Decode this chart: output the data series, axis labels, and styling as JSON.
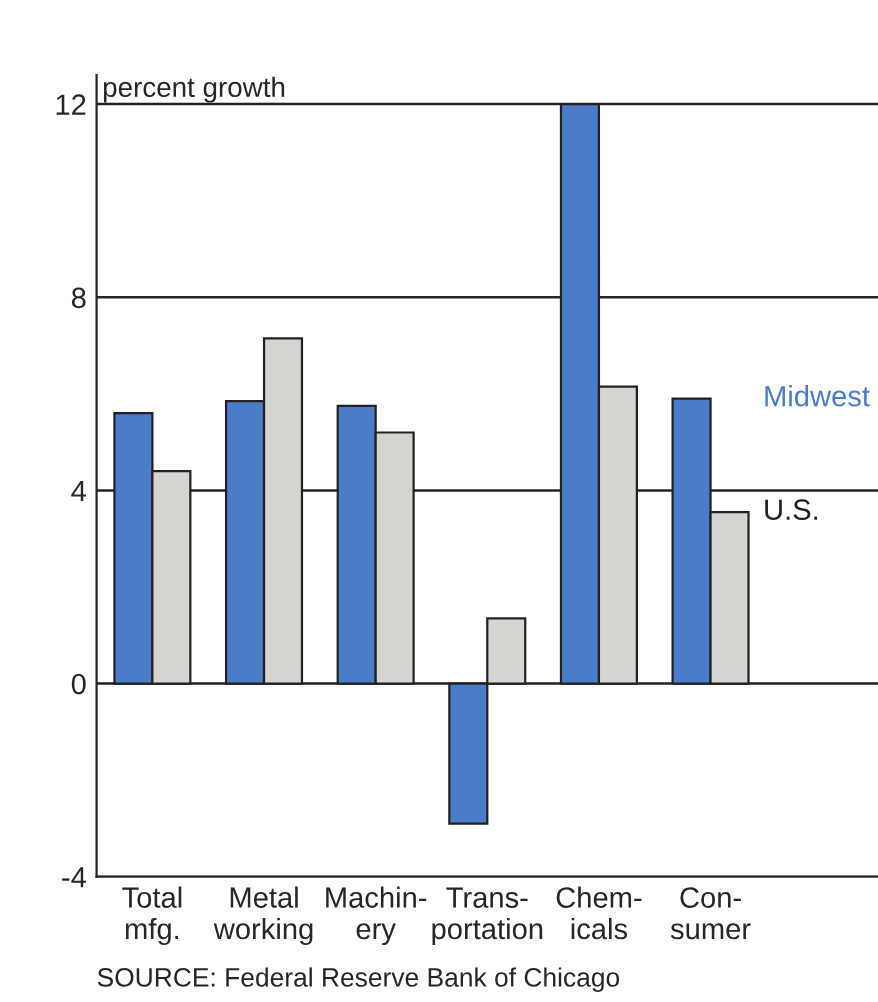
{
  "chart_data": {
    "type": "bar",
    "ylabel": "percent growth",
    "categories": [
      "Total\nmfg.",
      "Metal\nworking",
      "Machin-\nery",
      "Trans-\nportation",
      "Chem-\nicals",
      "Con-\nsumer"
    ],
    "series": [
      {
        "name": "Midwest",
        "color": "#4a7cc9",
        "values": [
          5.6,
          5.85,
          5.75,
          -2.9,
          12.0,
          5.9
        ]
      },
      {
        "name": "U.S.",
        "color": "#d4d4d0",
        "values": [
          4.4,
          7.15,
          5.2,
          1.35,
          6.15,
          3.55
        ]
      }
    ],
    "ylim": [
      -4,
      12.6
    ],
    "yticks": [
      -4,
      0,
      4,
      8,
      12
    ],
    "grid": "y",
    "annotations": [
      "SOURCE: Federal Reserve Bank of Chicago"
    ]
  }
}
